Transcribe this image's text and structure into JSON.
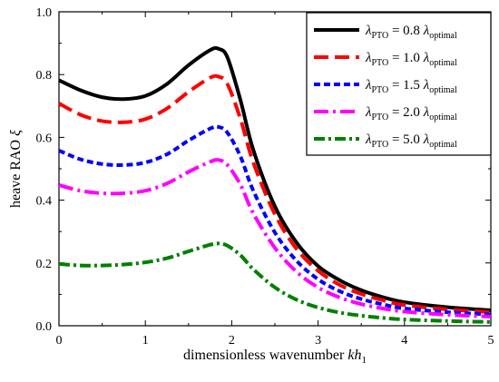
{
  "chart_data": {
    "type": "line",
    "xlabel": "dimensionless wavenumber kh1",
    "xlabel_parts": {
      "text": "dimensionless wavenumber ",
      "var": "kh",
      "sub": "1"
    },
    "ylabel": "heave RAO ξ",
    "ylabel_parts": {
      "text": "heave RAO ",
      "var": "ξ"
    },
    "xlim": [
      0,
      5
    ],
    "ylim": [
      0,
      1.0
    ],
    "xticks": [
      0,
      1,
      2,
      3,
      4,
      5
    ],
    "yticks": [
      0.0,
      0.2,
      0.4,
      0.6,
      0.8,
      1.0
    ],
    "xtick_labels": [
      "0",
      "1",
      "2",
      "3",
      "4",
      "5"
    ],
    "ytick_labels": [
      "0.0",
      "0.2",
      "0.4",
      "0.6",
      "0.8",
      "1.0"
    ],
    "grid": false,
    "legend_position": "top-right",
    "x": [
      0,
      0.25,
      0.5,
      0.75,
      1.0,
      1.25,
      1.5,
      1.75,
      1.85,
      1.95,
      2.1,
      2.25,
      2.5,
      2.75,
      3.0,
      3.25,
      3.5,
      3.75,
      4.0,
      4.5,
      5.0
    ],
    "series": [
      {
        "name": "λPTO = 0.8 λoptimal",
        "legend": {
          "lhs": "λ",
          "lhs_sub": "PTO",
          "eq": " = 0.8 ",
          "rhs": "λ",
          "rhs_sub": "optimal"
        },
        "color": "#000000",
        "dash": "",
        "width": 4,
        "values": [
          0.782,
          0.75,
          0.728,
          0.722,
          0.732,
          0.77,
          0.83,
          0.878,
          0.882,
          0.855,
          0.72,
          0.56,
          0.38,
          0.265,
          0.19,
          0.145,
          0.113,
          0.091,
          0.075,
          0.059,
          0.049
        ]
      },
      {
        "name": "λPTO = 1.0 λoptimal",
        "legend": {
          "lhs": "λ",
          "lhs_sub": "PTO",
          "eq": " = 1.0 ",
          "rhs": "λ",
          "rhs_sub": "optimal"
        },
        "color": "#ff0000",
        "dash": "16 7",
        "width": 4,
        "values": [
          0.708,
          0.672,
          0.652,
          0.648,
          0.658,
          0.692,
          0.745,
          0.79,
          0.793,
          0.77,
          0.66,
          0.52,
          0.355,
          0.245,
          0.175,
          0.13,
          0.101,
          0.081,
          0.066,
          0.052,
          0.043
        ]
      },
      {
        "name": "λPTO = 1.5 λoptimal",
        "legend": {
          "lhs": "λ",
          "lhs_sub": "PTO",
          "eq": " = 1.5 ",
          "rhs": "λ",
          "rhs_sub": "optimal"
        },
        "color": "#0000ff",
        "dash": "7 4",
        "width": 4,
        "values": [
          0.558,
          0.53,
          0.515,
          0.512,
          0.52,
          0.546,
          0.59,
          0.628,
          0.633,
          0.615,
          0.54,
          0.43,
          0.297,
          0.207,
          0.148,
          0.11,
          0.085,
          0.068,
          0.055,
          0.043,
          0.036
        ]
      },
      {
        "name": "λPTO = 2.0 λoptimal",
        "legend": {
          "lhs": "λ",
          "lhs_sub": "PTO",
          "eq": " = 2.0 ",
          "rhs": "λ",
          "rhs_sub": "optimal"
        },
        "color": "#ff00ff",
        "dash": "16 5 3 5",
        "width": 4,
        "values": [
          0.448,
          0.43,
          0.422,
          0.422,
          0.43,
          0.453,
          0.49,
          0.522,
          0.528,
          0.512,
          0.45,
          0.358,
          0.248,
          0.172,
          0.122,
          0.09,
          0.069,
          0.055,
          0.045,
          0.035,
          0.029
        ]
      },
      {
        "name": "λPTO = 5.0 λoptimal",
        "legend": {
          "lhs": "λ",
          "lhs_sub": "PTO",
          "eq": " = 5.0 ",
          "rhs": "λ",
          "rhs_sub": "optimal"
        },
        "color": "#008000",
        "dash": "12 4 3 4",
        "width": 4,
        "values": [
          0.197,
          0.192,
          0.192,
          0.195,
          0.202,
          0.215,
          0.237,
          0.258,
          0.262,
          0.255,
          0.225,
          0.18,
          0.122,
          0.083,
          0.058,
          0.042,
          0.032,
          0.025,
          0.02,
          0.015,
          0.012
        ]
      }
    ]
  }
}
